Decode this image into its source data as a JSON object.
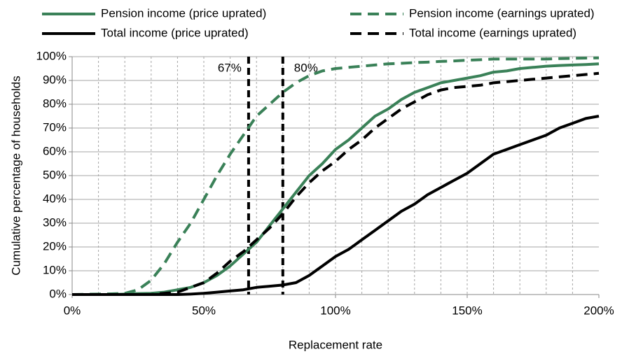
{
  "chart_data": {
    "type": "line",
    "xlabel": "Replacement rate",
    "ylabel": "Cumulative percentage of households",
    "x": [
      0,
      5,
      10,
      15,
      20,
      25,
      30,
      35,
      40,
      45,
      50,
      55,
      60,
      65,
      70,
      75,
      80,
      85,
      90,
      95,
      100,
      105,
      110,
      115,
      120,
      125,
      130,
      135,
      140,
      145,
      150,
      155,
      160,
      165,
      170,
      175,
      180,
      185,
      190,
      195,
      200
    ],
    "series": [
      {
        "name": "Pension income (price uprated)",
        "color": "#3a8158",
        "dash": false,
        "values": [
          0,
          0,
          0,
          0,
          0.2,
          0.4,
          0.5,
          1,
          2,
          3,
          5,
          8,
          12,
          17,
          22,
          29,
          36,
          43,
          50,
          55,
          61,
          65,
          70,
          75,
          78,
          82,
          85,
          87,
          89,
          90,
          91,
          92,
          93.5,
          94,
          95,
          95.5,
          96,
          96.3,
          96.5,
          96.7,
          97
        ]
      },
      {
        "name": "Pension income (earnings uprated)",
        "color": "#3a8158",
        "dash": true,
        "values": [
          0,
          0.1,
          0.2,
          0.3,
          0.5,
          2,
          6,
          13,
          22,
          30,
          40,
          50,
          59,
          67,
          75,
          80,
          85,
          89,
          92,
          94,
          95,
          95.5,
          96,
          96.5,
          97,
          97.2,
          97.5,
          97.7,
          98,
          98.2,
          98.5,
          98.7,
          99,
          99,
          99,
          99,
          99,
          99.2,
          99.3,
          99.4,
          99.5
        ]
      },
      {
        "name": "Total income  (price uprated)",
        "color": "#000000",
        "dash": false,
        "values": [
          0,
          0,
          0,
          0,
          0,
          0,
          0,
          0,
          0,
          0.2,
          0.5,
          1,
          1.5,
          2,
          3,
          3.5,
          4,
          5,
          8,
          12,
          16,
          19,
          23,
          27,
          31,
          35,
          38,
          42,
          45,
          48,
          51,
          55,
          59,
          61,
          63,
          65,
          67,
          70,
          72,
          74,
          75
        ]
      },
      {
        "name": "Total income (earnings uprated)",
        "color": "#000000",
        "dash": true,
        "values": [
          0,
          0,
          0,
          0,
          0,
          0,
          0,
          0.5,
          1,
          3,
          5,
          9,
          14,
          18,
          23,
          28,
          34,
          41,
          47,
          52,
          56,
          61,
          65,
          70,
          74,
          78,
          81,
          84,
          86,
          87,
          87.5,
          88,
          89,
          89.5,
          90,
          90.5,
          91,
          91.5,
          92,
          92.5,
          93
        ]
      }
    ],
    "reference_lines": [
      {
        "x": 67,
        "label": "67%"
      },
      {
        "x": 80,
        "label": "80%"
      }
    ],
    "xlim": [
      0,
      200
    ],
    "xticks": [
      {
        "value": 0,
        "label": "0%"
      },
      {
        "value": 50,
        "label": "50%"
      },
      {
        "value": 100,
        "label": "100%"
      },
      {
        "value": 150,
        "label": "150%"
      },
      {
        "value": 200,
        "label": "200%"
      }
    ],
    "xgrid": [
      10,
      20,
      30,
      40,
      50,
      60,
      70,
      80,
      90,
      100,
      110,
      120,
      130,
      140,
      150,
      160,
      170,
      180,
      190
    ],
    "ylim": [
      0,
      100
    ],
    "yticks": [
      {
        "value": 0,
        "label": "0%"
      },
      {
        "value": 10,
        "label": "10%"
      },
      {
        "value": 20,
        "label": "20%"
      },
      {
        "value": 30,
        "label": "30%"
      },
      {
        "value": 40,
        "label": "40%"
      },
      {
        "value": 50,
        "label": "50%"
      },
      {
        "value": 60,
        "label": "60%"
      },
      {
        "value": 70,
        "label": "70%"
      },
      {
        "value": 80,
        "label": "80%"
      },
      {
        "value": 90,
        "label": "90%"
      },
      {
        "value": 100,
        "label": "100%"
      }
    ],
    "grid": true,
    "legend": "top"
  }
}
